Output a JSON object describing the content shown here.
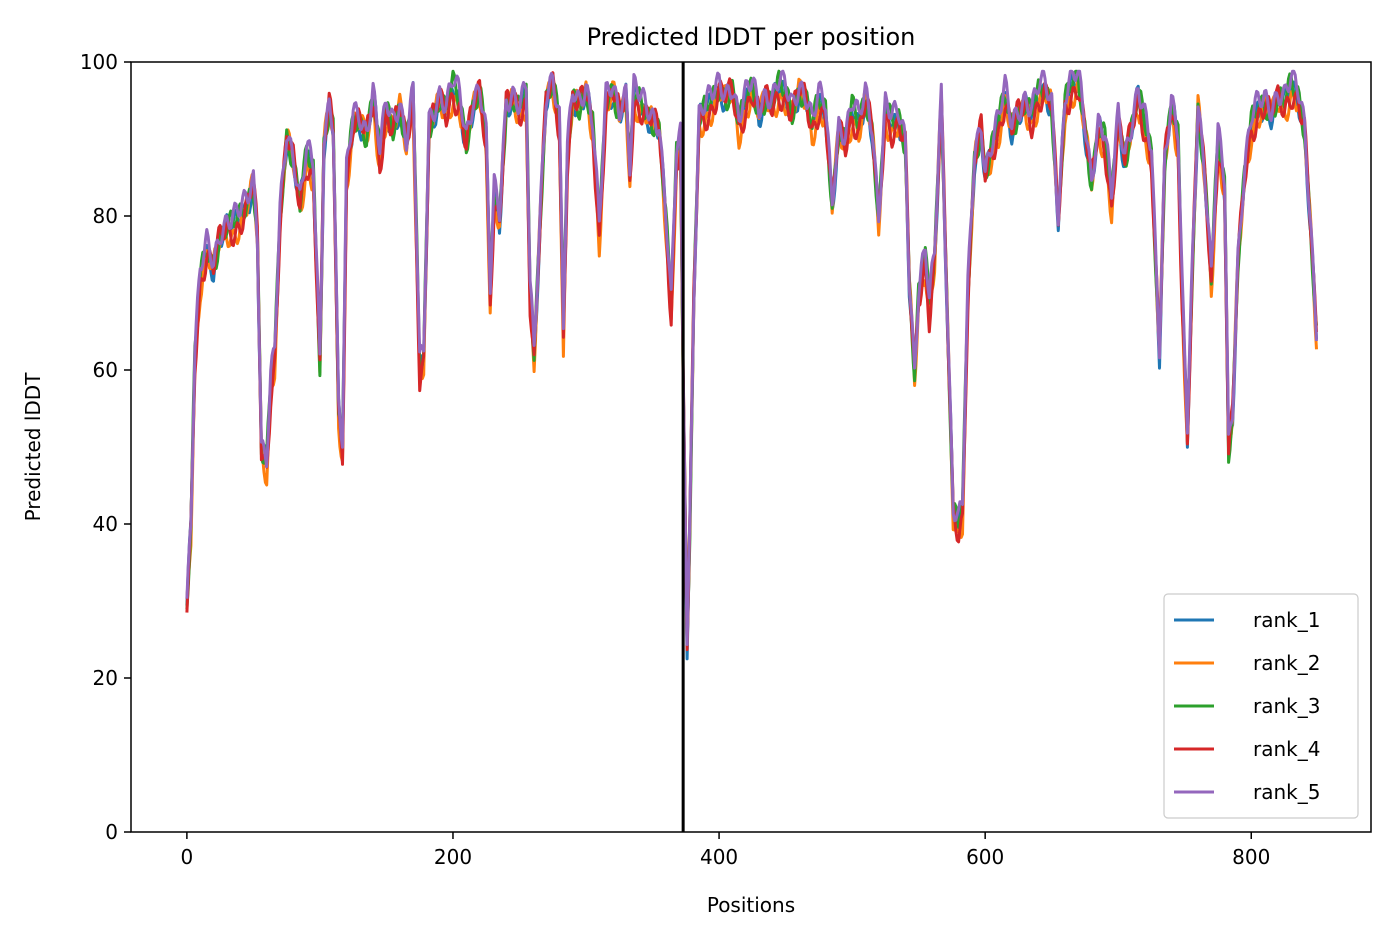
{
  "chart_data": {
    "type": "line",
    "title": "Predicted lDDT per position",
    "xlabel": "Positions",
    "ylabel": "Predicted lDDT",
    "xlim": [
      -42,
      890
    ],
    "ylim": [
      0,
      100
    ],
    "xticks": [
      0,
      200,
      400,
      600,
      800
    ],
    "yticks": [
      0,
      20,
      40,
      60,
      80,
      100
    ],
    "vline_x": 373,
    "legend_position": "lower-right",
    "series": [
      {
        "name": "rank_1",
        "color": "#1f77b4",
        "offset": -0.6
      },
      {
        "name": "rank_2",
        "color": "#ff7f0e",
        "offset": -1.2
      },
      {
        "name": "rank_3",
        "color": "#2ca02c",
        "offset": -0.3
      },
      {
        "name": "rank_4",
        "color": "#d62728",
        "offset": -0.9
      },
      {
        "name": "rank_5",
        "color": "#9467bd",
        "offset": 0.4
      }
    ],
    "profile": [
      [
        0,
        30
      ],
      [
        3,
        40
      ],
      [
        6,
        62
      ],
      [
        10,
        72
      ],
      [
        15,
        76
      ],
      [
        20,
        74
      ],
      [
        25,
        78
      ],
      [
        30,
        79
      ],
      [
        35,
        79
      ],
      [
        40,
        80
      ],
      [
        45,
        82
      ],
      [
        50,
        85
      ],
      [
        53,
        78
      ],
      [
        56,
        50
      ],
      [
        60,
        48
      ],
      [
        63,
        58
      ],
      [
        66,
        62
      ],
      [
        70,
        80
      ],
      [
        75,
        91
      ],
      [
        80,
        88
      ],
      [
        85,
        82
      ],
      [
        90,
        88
      ],
      [
        95,
        86
      ],
      [
        100,
        61
      ],
      [
        103,
        90
      ],
      [
        107,
        95
      ],
      [
        110,
        92
      ],
      [
        114,
        55
      ],
      [
        117,
        50
      ],
      [
        120,
        85
      ],
      [
        125,
        93
      ],
      [
        130,
        93
      ],
      [
        135,
        91
      ],
      [
        140,
        96
      ],
      [
        145,
        88
      ],
      [
        150,
        94
      ],
      [
        155,
        92
      ],
      [
        160,
        95
      ],
      [
        165,
        90
      ],
      [
        170,
        96
      ],
      [
        175,
        60
      ],
      [
        178,
        62
      ],
      [
        182,
        92
      ],
      [
        190,
        96
      ],
      [
        195,
        94
      ],
      [
        200,
        97
      ],
      [
        205,
        95
      ],
      [
        210,
        90
      ],
      [
        215,
        95
      ],
      [
        220,
        97
      ],
      [
        225,
        90
      ],
      [
        228,
        70
      ],
      [
        231,
        83
      ],
      [
        235,
        80
      ],
      [
        240,
        95
      ],
      [
        245,
        96
      ],
      [
        250,
        94
      ],
      [
        255,
        96
      ],
      [
        258,
        70
      ],
      [
        261,
        62
      ],
      [
        266,
        82
      ],
      [
        270,
        96
      ],
      [
        275,
        98
      ],
      [
        280,
        92
      ],
      [
        283,
        65
      ],
      [
        286,
        88
      ],
      [
        290,
        96
      ],
      [
        295,
        95
      ],
      [
        300,
        97
      ],
      [
        305,
        92
      ],
      [
        310,
        78
      ],
      [
        315,
        95
      ],
      [
        320,
        97
      ],
      [
        325,
        94
      ],
      [
        330,
        96
      ],
      [
        333,
        86
      ],
      [
        336,
        96
      ],
      [
        340,
        95
      ],
      [
        345,
        94
      ],
      [
        350,
        93
      ],
      [
        355,
        92
      ],
      [
        360,
        80
      ],
      [
        364,
        68
      ],
      [
        368,
        88
      ],
      [
        371,
        90
      ],
      [
        373,
        60
      ],
      [
        376,
        25
      ],
      [
        378,
        40
      ],
      [
        381,
        70
      ],
      [
        385,
        93
      ],
      [
        390,
        94
      ],
      [
        395,
        95
      ],
      [
        400,
        97
      ],
      [
        405,
        96
      ],
      [
        410,
        97
      ],
      [
        415,
        92
      ],
      [
        420,
        95
      ],
      [
        425,
        97
      ],
      [
        430,
        94
      ],
      [
        435,
        96
      ],
      [
        440,
        95
      ],
      [
        445,
        97
      ],
      [
        450,
        96
      ],
      [
        455,
        94
      ],
      [
        460,
        97
      ],
      [
        465,
        96
      ],
      [
        470,
        92
      ],
      [
        475,
        95
      ],
      [
        480,
        94
      ],
      [
        485,
        82
      ],
      [
        490,
        92
      ],
      [
        495,
        90
      ],
      [
        500,
        94
      ],
      [
        505,
        92
      ],
      [
        510,
        96
      ],
      [
        515,
        92
      ],
      [
        520,
        80
      ],
      [
        525,
        94
      ],
      [
        530,
        92
      ],
      [
        535,
        93
      ],
      [
        540,
        90
      ],
      [
        543,
        72
      ],
      [
        547,
        60
      ],
      [
        550,
        70
      ],
      [
        555,
        75
      ],
      [
        558,
        68
      ],
      [
        562,
        75
      ],
      [
        567,
        96
      ],
      [
        572,
        65
      ],
      [
        576,
        42
      ],
      [
        580,
        40
      ],
      [
        583,
        42
      ],
      [
        587,
        70
      ],
      [
        592,
        88
      ],
      [
        597,
        92
      ],
      [
        600,
        86
      ],
      [
        605,
        89
      ],
      [
        610,
        92
      ],
      [
        615,
        96
      ],
      [
        620,
        92
      ],
      [
        625,
        94
      ],
      [
        630,
        95
      ],
      [
        635,
        93
      ],
      [
        640,
        96
      ],
      [
        645,
        97
      ],
      [
        650,
        95
      ],
      [
        655,
        80
      ],
      [
        660,
        95
      ],
      [
        665,
        97
      ],
      [
        670,
        98
      ],
      [
        675,
        92
      ],
      [
        680,
        85
      ],
      [
        685,
        92
      ],
      [
        690,
        90
      ],
      [
        695,
        82
      ],
      [
        700,
        93
      ],
      [
        705,
        88
      ],
      [
        710,
        92
      ],
      [
        715,
        96
      ],
      [
        720,
        92
      ],
      [
        725,
        88
      ],
      [
        728,
        75
      ],
      [
        731,
        63
      ],
      [
        735,
        88
      ],
      [
        740,
        95
      ],
      [
        745,
        90
      ],
      [
        748,
        70
      ],
      [
        752,
        52
      ],
      [
        756,
        75
      ],
      [
        760,
        95
      ],
      [
        765,
        86
      ],
      [
        770,
        72
      ],
      [
        775,
        90
      ],
      [
        780,
        84
      ],
      [
        783,
        50
      ],
      [
        786,
        55
      ],
      [
        790,
        75
      ],
      [
        795,
        86
      ],
      [
        800,
        92
      ],
      [
        805,
        94
      ],
      [
        810,
        95
      ],
      [
        815,
        94
      ],
      [
        820,
        96
      ],
      [
        825,
        95
      ],
      [
        830,
        97
      ],
      [
        835,
        96
      ],
      [
        840,
        92
      ],
      [
        845,
        78
      ],
      [
        849,
        65
      ]
    ]
  }
}
